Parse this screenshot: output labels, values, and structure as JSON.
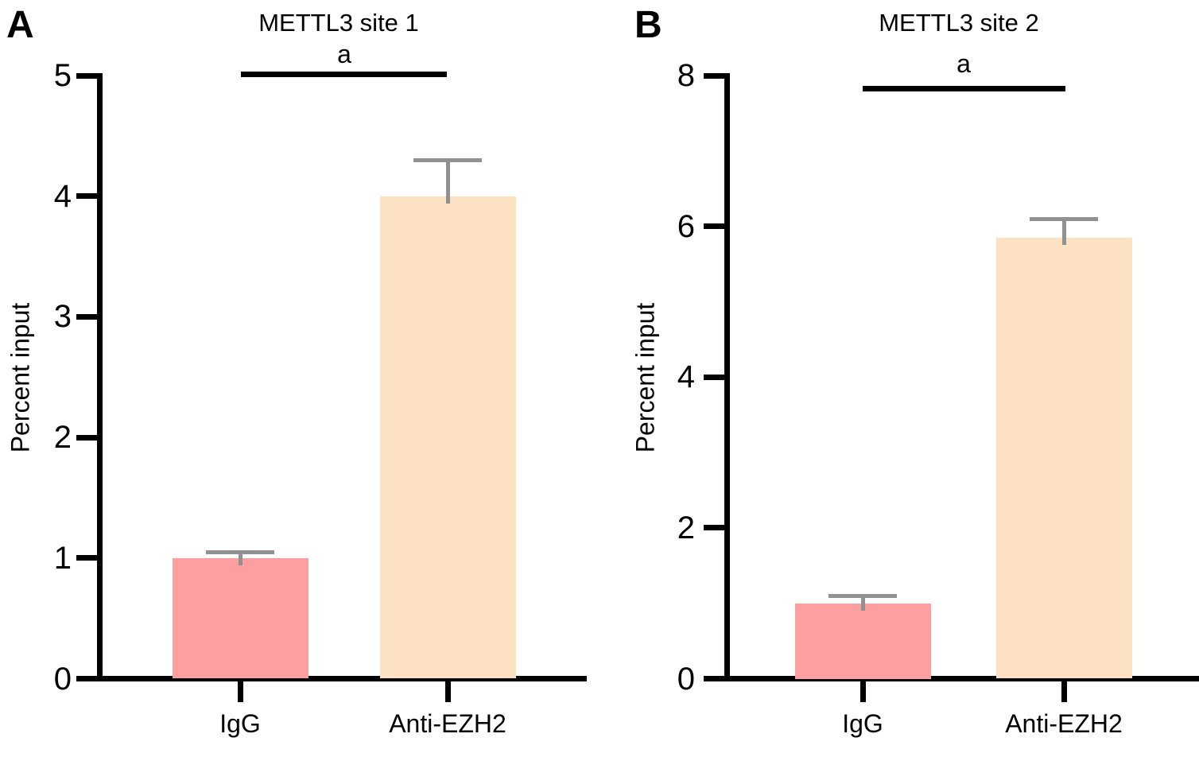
{
  "chart_data": [
    {
      "type": "bar",
      "panel_letter": "A",
      "title": "METTL3 site 1",
      "ylabel": "Percent input",
      "xlabel": "",
      "ylim": [
        0,
        5
      ],
      "yticks": [
        0,
        1,
        2,
        3,
        4,
        5
      ],
      "categories": [
        "IgG",
        "Anti-EZH2"
      ],
      "values": [
        1.0,
        4.0
      ],
      "errors_upper": [
        0.05,
        0.3
      ],
      "bar_colors": [
        "#FC9FA0",
        "#FCE1C2"
      ],
      "error_bar_color": "#919191",
      "axis_color": "#000000",
      "grid": "off",
      "legend": "none",
      "significance": {
        "label": "a",
        "from": "IgG",
        "to": "Anti-EZH2"
      }
    },
    {
      "type": "bar",
      "panel_letter": "B",
      "title": "METTL3 site 2",
      "ylabel": "Percent input",
      "xlabel": "",
      "ylim": [
        0,
        8
      ],
      "yticks": [
        0,
        2,
        4,
        6,
        8
      ],
      "categories": [
        "IgG",
        "Anti-EZH2"
      ],
      "values": [
        1.0,
        5.85
      ],
      "errors_upper": [
        0.1,
        0.25
      ],
      "bar_colors": [
        "#FC9FA0",
        "#FCE1C2"
      ],
      "error_bar_color": "#919191",
      "axis_color": "#000000",
      "grid": "off",
      "legend": "none",
      "significance": {
        "label": "a",
        "from": "IgG",
        "to": "Anti-EZH2"
      }
    }
  ]
}
